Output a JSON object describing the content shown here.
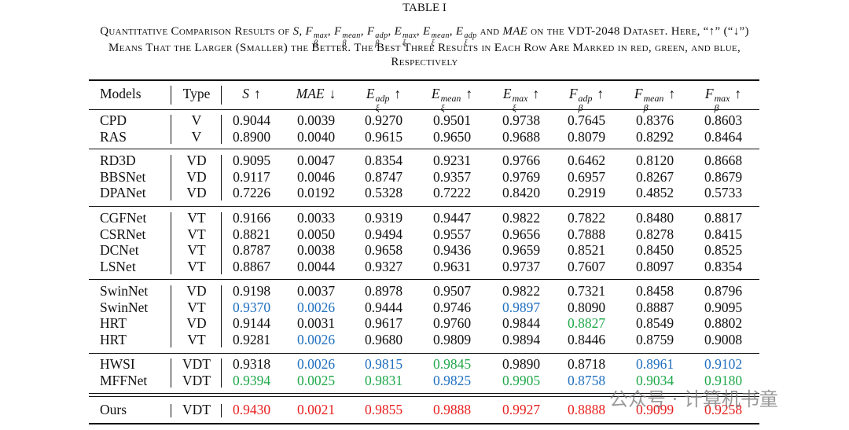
{
  "title": "TABLE I",
  "caption": [
    [
      "Quantitative Comparison Results of ",
      {
        "base": "S"
      },
      ", ",
      {
        "base": "F",
        "sub": "β",
        "sup": "max"
      },
      ", ",
      {
        "base": "F",
        "sub": "β",
        "sup": "mean"
      },
      ", ",
      {
        "base": "F",
        "sub": "β",
        "sup": "adp"
      },
      ", ",
      {
        "base": "E",
        "sub": "ξ",
        "sup": "max"
      },
      ", ",
      {
        "base": "E",
        "sub": "ξ",
        "sup": "mean"
      },
      ", ",
      {
        "base": "E",
        "sub": "ξ",
        "sup": "adp"
      },
      " and ",
      {
        "base": "MAE"
      },
      " on the VDT-2048 Dataset. Here, “↑” (“↓”)"
    ],
    [
      "Means That the Larger (Smaller) the Better. The Best Three Results in Each Row Are Marked in red, green, and blue,"
    ],
    [
      "Respectively"
    ]
  ],
  "table": {
    "headers": [
      "Models",
      "Type",
      {
        "base": "S",
        "arrow": "↑"
      },
      {
        "base": "MAE",
        "arrow": "↓"
      },
      {
        "base": "E",
        "sub": "ξ",
        "sup": "adp",
        "arrow": "↑"
      },
      {
        "base": "E",
        "sub": "ξ",
        "sup": "mean",
        "arrow": "↑"
      },
      {
        "base": "E",
        "sub": "ξ",
        "sup": "max",
        "arrow": "↑"
      },
      {
        "base": "F",
        "sub": "β",
        "sup": "adp",
        "arrow": "↑"
      },
      {
        "base": "F",
        "sub": "β",
        "sup": "mean",
        "arrow": "↑"
      },
      {
        "base": "F",
        "sub": "β",
        "sup": "max",
        "arrow": "↑"
      }
    ],
    "groups": [
      [
        {
          "model": "CPD",
          "type": "V",
          "values": [
            "0.9044",
            "0.0039",
            "0.9270",
            "0.9501",
            "0.9738",
            "0.7645",
            "0.8376",
            "0.8603"
          ]
        },
        {
          "model": "RAS",
          "type": "V",
          "values": [
            "0.8900",
            "0.0040",
            "0.9615",
            "0.9650",
            "0.9688",
            "0.8079",
            "0.8292",
            "0.8464"
          ]
        }
      ],
      [
        {
          "model": "RD3D",
          "type": "VD",
          "values": [
            "0.9095",
            "0.0047",
            "0.8354",
            "0.9231",
            "0.9766",
            "0.6462",
            "0.8120",
            "0.8668"
          ]
        },
        {
          "model": "BBSNet",
          "type": "VD",
          "values": [
            "0.9117",
            "0.0046",
            "0.8747",
            "0.9357",
            "0.9769",
            "0.6957",
            "0.8267",
            "0.8679"
          ]
        },
        {
          "model": "DPANet",
          "type": "VD",
          "values": [
            "0.7226",
            "0.0192",
            "0.5328",
            "0.7222",
            "0.8420",
            "0.2919",
            "0.4852",
            "0.5733"
          ]
        }
      ],
      [
        {
          "model": "CGFNet",
          "type": "VT",
          "values": [
            "0.9166",
            "0.0033",
            "0.9319",
            "0.9447",
            "0.9822",
            "0.7822",
            "0.8480",
            "0.8817"
          ]
        },
        {
          "model": "CSRNet",
          "type": "VT",
          "values": [
            "0.8821",
            "0.0050",
            "0.9494",
            "0.9557",
            "0.9656",
            "0.7888",
            "0.8278",
            "0.8415"
          ]
        },
        {
          "model": "DCNet",
          "type": "VT",
          "values": [
            "0.8787",
            "0.0038",
            "0.9658",
            "0.9436",
            "0.9659",
            "0.8521",
            "0.8450",
            "0.8525"
          ]
        },
        {
          "model": "LSNet",
          "type": "VT",
          "values": [
            "0.8867",
            "0.0044",
            "0.9327",
            "0.9631",
            "0.9737",
            "0.7607",
            "0.8097",
            "0.8354"
          ]
        }
      ],
      [
        {
          "model": "SwinNet",
          "type": "VD",
          "values": [
            "0.9198",
            "0.0037",
            "0.8978",
            "0.9507",
            "0.9822",
            "0.7321",
            "0.8458",
            "0.8796"
          ]
        },
        {
          "model": "SwinNet",
          "type": "VT",
          "values": [
            {
              "text": "0.9370",
              "color": "#1f6fbf"
            },
            {
              "text": "0.0026",
              "color": "#1f6fbf"
            },
            "0.9444",
            "0.9746",
            {
              "text": "0.9897",
              "color": "#1f6fbf"
            },
            "0.8090",
            "0.8887",
            "0.9095"
          ]
        },
        {
          "model": "HRT",
          "type": "VD",
          "values": [
            "0.9144",
            "0.0031",
            "0.9617",
            "0.9760",
            "0.9844",
            {
              "text": "0.8827",
              "color": "#1fa84a"
            },
            "0.8549",
            "0.8802"
          ]
        },
        {
          "model": "HRT",
          "type": "VT",
          "values": [
            "0.9281",
            {
              "text": "0.0026",
              "color": "#1f6fbf"
            },
            "0.9680",
            "0.9809",
            "0.9894",
            "0.8446",
            "0.8759",
            "0.9008"
          ]
        }
      ],
      [
        {
          "model": "HWSI",
          "type": "VDT",
          "values": [
            "0.9318",
            {
              "text": "0.0026",
              "color": "#1f6fbf"
            },
            {
              "text": "0.9815",
              "color": "#1f6fbf"
            },
            {
              "text": "0.9845",
              "color": "#1fa84a"
            },
            "0.9890",
            "0.8718",
            {
              "text": "0.8961",
              "color": "#1f6fbf"
            },
            {
              "text": "0.9102",
              "color": "#1f6fbf"
            }
          ]
        },
        {
          "model": "MFFNet",
          "type": "VDT",
          "values": [
            {
              "text": "0.9394",
              "color": "#1fa84a"
            },
            {
              "text": "0.0025",
              "color": "#1fa84a"
            },
            {
              "text": "0.9831",
              "color": "#1fa84a"
            },
            {
              "text": "0.9825",
              "color": "#1f6fbf"
            },
            {
              "text": "0.9905",
              "color": "#1fa84a"
            },
            {
              "text": "0.8758",
              "color": "#1f6fbf"
            },
            {
              "text": "0.9034",
              "color": "#1fa84a"
            },
            {
              "text": "0.9180",
              "color": "#1fa84a"
            }
          ]
        }
      ],
      [
        {
          "model": "Ours",
          "type": "VDT",
          "values": [
            {
              "text": "0.9430",
              "color": "#e8201f"
            },
            {
              "text": "0.0021",
              "color": "#e8201f"
            },
            {
              "text": "0.9855",
              "color": "#e8201f"
            },
            {
              "text": "0.9888",
              "color": "#e8201f"
            },
            {
              "text": "0.9927",
              "color": "#e8201f"
            },
            {
              "text": "0.8888",
              "color": "#e8201f"
            },
            {
              "text": "0.9099",
              "color": "#e8201f"
            },
            {
              "text": "0.9258",
              "color": "#e8201f"
            }
          ]
        }
      ]
    ]
  },
  "watermark": "公众号 · 计算机书童"
}
